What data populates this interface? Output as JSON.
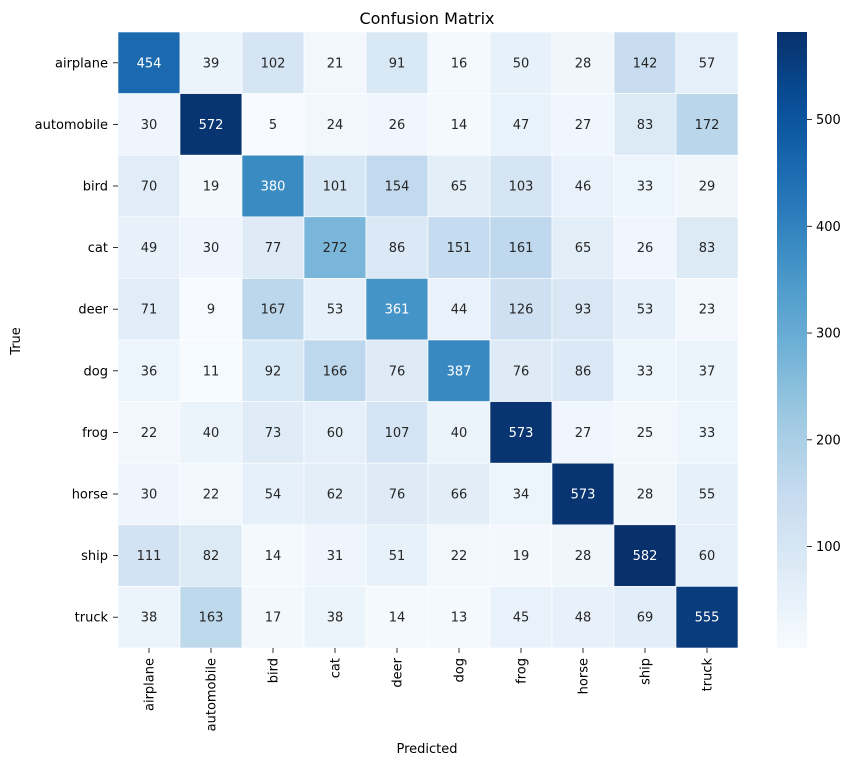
{
  "chart_data": {
    "type": "heatmap",
    "title": "Confusion Matrix",
    "xlabel": "Predicted",
    "ylabel": "True",
    "x_categories": [
      "airplane",
      "automobile",
      "bird",
      "cat",
      "deer",
      "dog",
      "frog",
      "horse",
      "ship",
      "truck"
    ],
    "y_categories": [
      "airplane",
      "automobile",
      "bird",
      "cat",
      "deer",
      "dog",
      "frog",
      "horse",
      "ship",
      "truck"
    ],
    "values": [
      [
        454,
        39,
        102,
        21,
        91,
        16,
        50,
        28,
        142,
        57
      ],
      [
        30,
        572,
        5,
        24,
        26,
        14,
        47,
        27,
        83,
        172
      ],
      [
        70,
        19,
        380,
        101,
        154,
        65,
        103,
        46,
        33,
        29
      ],
      [
        49,
        30,
        77,
        272,
        86,
        151,
        161,
        65,
        26,
        83
      ],
      [
        71,
        9,
        167,
        53,
        361,
        44,
        126,
        93,
        53,
        23
      ],
      [
        36,
        11,
        92,
        166,
        76,
        387,
        76,
        86,
        33,
        37
      ],
      [
        22,
        40,
        73,
        60,
        107,
        40,
        573,
        27,
        25,
        33
      ],
      [
        30,
        22,
        54,
        62,
        76,
        66,
        34,
        573,
        28,
        55
      ],
      [
        111,
        82,
        14,
        31,
        51,
        22,
        19,
        28,
        582,
        60
      ],
      [
        38,
        163,
        17,
        38,
        14,
        13,
        45,
        48,
        69,
        555
      ]
    ],
    "colormap": "Blues",
    "vmin": 5,
    "vmax": 582,
    "colorbar_ticks": [
      100,
      200,
      300,
      400,
      500
    ],
    "annotations": true,
    "grid": false
  }
}
